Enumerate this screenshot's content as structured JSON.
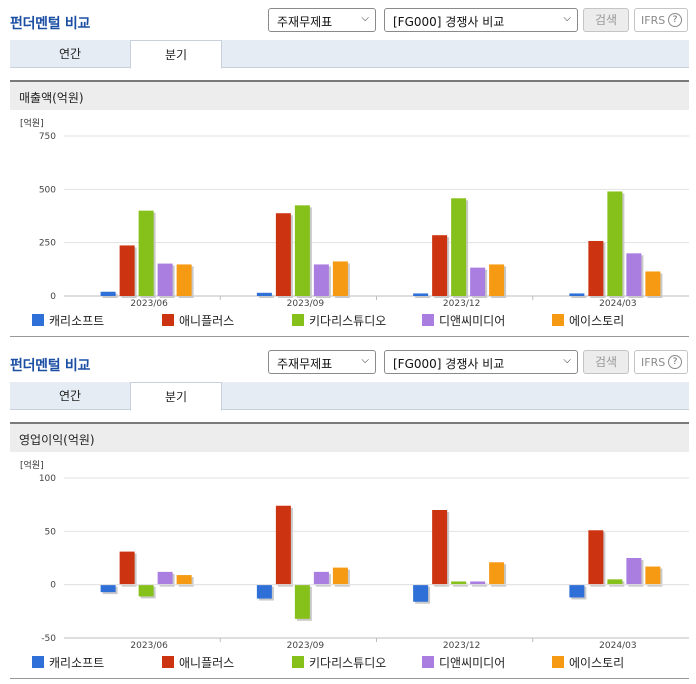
{
  "panels": [
    {
      "title": "펀더멘털 비교",
      "select_main": "주재무제표",
      "select_compare": "[FG000] 경쟁사 비교",
      "search_label": "검색",
      "ifrs_label": "IFRS",
      "help_glyph": "?",
      "tabs": [
        "연간",
        "분기"
      ],
      "active_tab": "분기",
      "section_title": "매출액(억원)"
    },
    {
      "title": "펀더멘털 비교",
      "select_main": "주재무제표",
      "select_compare": "[FG000] 경쟁사 비교",
      "search_label": "검색",
      "ifrs_label": "IFRS",
      "help_glyph": "?",
      "tabs": [
        "연간",
        "분기"
      ],
      "active_tab": "분기",
      "section_title": "영업이익(억원)"
    }
  ],
  "legend": [
    {
      "name": "캐리소프트",
      "color": "#2f6fd8"
    },
    {
      "name": "애니플러스",
      "color": "#cc3310"
    },
    {
      "name": "키다리스튜디오",
      "color": "#86c01a"
    },
    {
      "name": "디앤씨미디어",
      "color": "#a97ee0"
    },
    {
      "name": "에이스토리",
      "color": "#f59a12"
    }
  ],
  "chart_data": [
    {
      "type": "bar",
      "unit_label": "[억원]",
      "categories": [
        "2023/06",
        "2023/09",
        "2023/12",
        "2024/03"
      ],
      "ylim": [
        0,
        750
      ],
      "yticks": [
        0,
        250,
        500,
        750
      ],
      "grid": true,
      "legend_position": "bottom",
      "series": [
        {
          "name": "캐리소프트",
          "values": [
            20,
            15,
            12,
            12
          ]
        },
        {
          "name": "애니플러스",
          "values": [
            237,
            388,
            285,
            258
          ]
        },
        {
          "name": "키다리스튜디오",
          "values": [
            400,
            425,
            458,
            490
          ]
        },
        {
          "name": "디앤씨미디어",
          "values": [
            152,
            148,
            133,
            200
          ]
        },
        {
          "name": "에이스토리",
          "values": [
            148,
            162,
            148,
            115
          ]
        }
      ]
    },
    {
      "type": "bar",
      "unit_label": "[억원]",
      "categories": [
        "2023/06",
        "2023/09",
        "2023/12",
        "2024/03"
      ],
      "ylim": [
        -50,
        100
      ],
      "yticks": [
        -50,
        0,
        50,
        100
      ],
      "grid": true,
      "legend_position": "bottom",
      "series": [
        {
          "name": "캐리소프트",
          "values": [
            -7,
            -13,
            -16,
            -12
          ]
        },
        {
          "name": "애니플러스",
          "values": [
            31,
            74,
            70,
            51
          ]
        },
        {
          "name": "키다리스튜디오",
          "values": [
            -11,
            -32,
            3,
            5
          ]
        },
        {
          "name": "디앤씨미디어",
          "values": [
            12,
            12,
            3,
            25
          ]
        },
        {
          "name": "에이스토리",
          "values": [
            9,
            16,
            21,
            17
          ]
        }
      ]
    }
  ]
}
